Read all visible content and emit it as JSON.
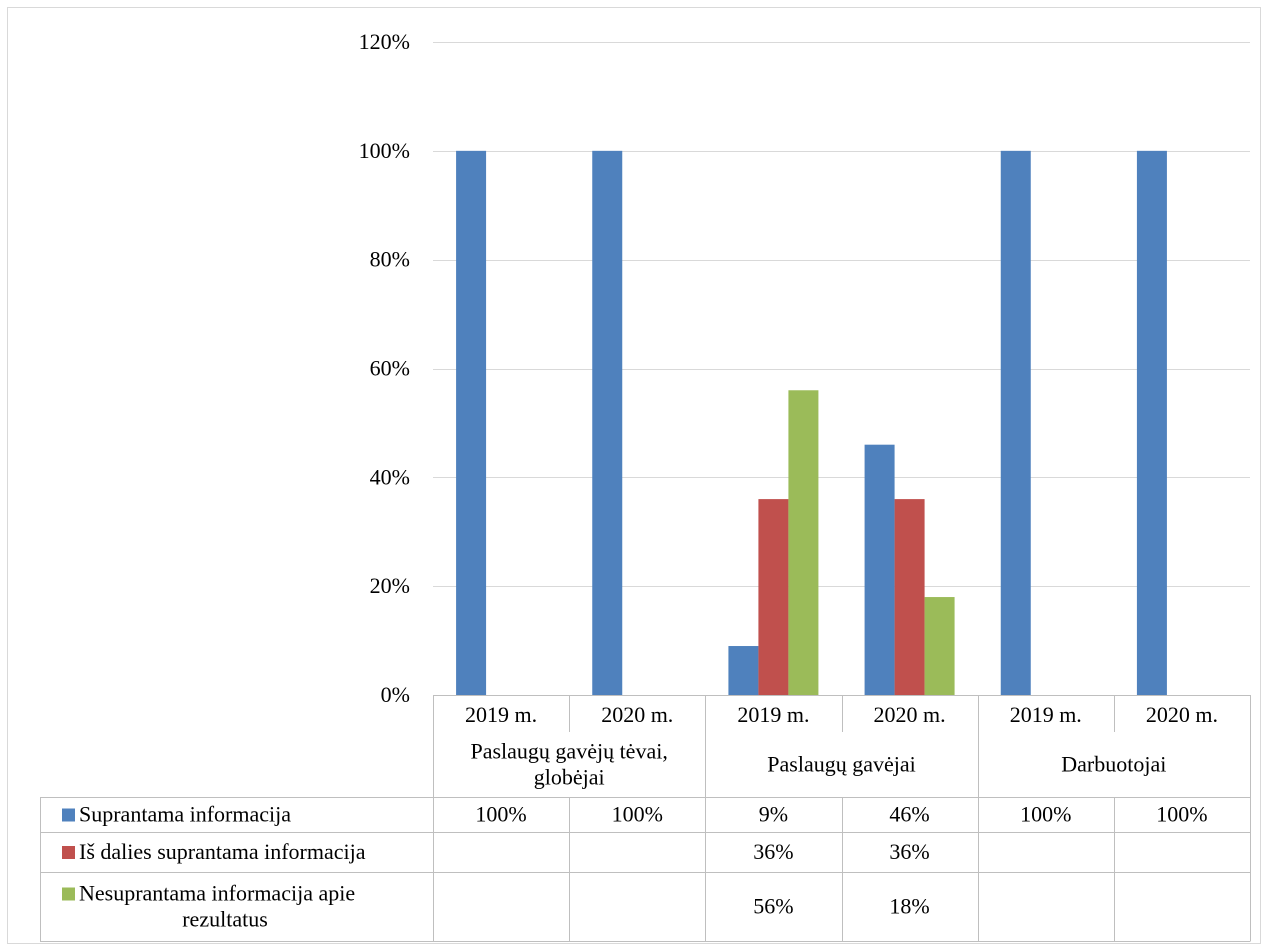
{
  "chart_data": {
    "type": "bar",
    "title": "",
    "xlabel": "",
    "ylabel": "",
    "ylim": [
      0,
      1.2
    ],
    "y_ticks": [
      0,
      0.2,
      0.4,
      0.6,
      0.8,
      1.0,
      1.2
    ],
    "y_tick_labels": [
      "0%",
      "20%",
      "40%",
      "60%",
      "80%",
      "100%",
      "120%"
    ],
    "grid": true,
    "legend": "data-table",
    "categories": [
      "2019 m.",
      "2020 m.",
      "2019 m.",
      "2020 m.",
      "2019 m.",
      "2020 m."
    ],
    "groups": [
      {
        "label": "Paslaugų gavėjų tėvai, globėjai",
        "label_lines": [
          "Paslaugų gavėjų tėvai,",
          "globėjai"
        ],
        "span": [
          0,
          1
        ]
      },
      {
        "label": "Paslaugų gavėjai",
        "label_lines": [
          "Paslaugų gavėjai"
        ],
        "span": [
          2,
          3
        ]
      },
      {
        "label": "Darbuotojai",
        "label_lines": [
          "Darbuotojai"
        ],
        "span": [
          4,
          5
        ]
      }
    ],
    "series": [
      {
        "name": "Suprantama informacija",
        "name_lines": [
          "Suprantama informacija"
        ],
        "color": "#4f81bd",
        "values": [
          1.0,
          1.0,
          0.09,
          0.46,
          1.0,
          1.0
        ],
        "table_labels": [
          "100%",
          "100%",
          "9%",
          "46%",
          "100%",
          "100%"
        ]
      },
      {
        "name": "Iš dalies suprantama informacija",
        "name_lines": [
          "Iš dalies suprantama informacija"
        ],
        "color": "#c0504d",
        "values": [
          null,
          null,
          0.36,
          0.36,
          null,
          null
        ],
        "table_labels": [
          "",
          "",
          "36%",
          "36%",
          "",
          ""
        ]
      },
      {
        "name": "Nesuprantama informacija apie rezultatus",
        "name_lines": [
          "Nesuprantama informacija apie",
          "rezultatus"
        ],
        "color": "#9bbb59",
        "values": [
          null,
          null,
          0.56,
          0.18,
          null,
          null
        ],
        "table_labels": [
          "",
          "",
          "56%",
          "18%",
          "",
          ""
        ]
      }
    ],
    "colors": {
      "gridline": "#d9d9d9",
      "table_border": "#bfbfbf",
      "frame_border": "#d9d9d9"
    }
  }
}
